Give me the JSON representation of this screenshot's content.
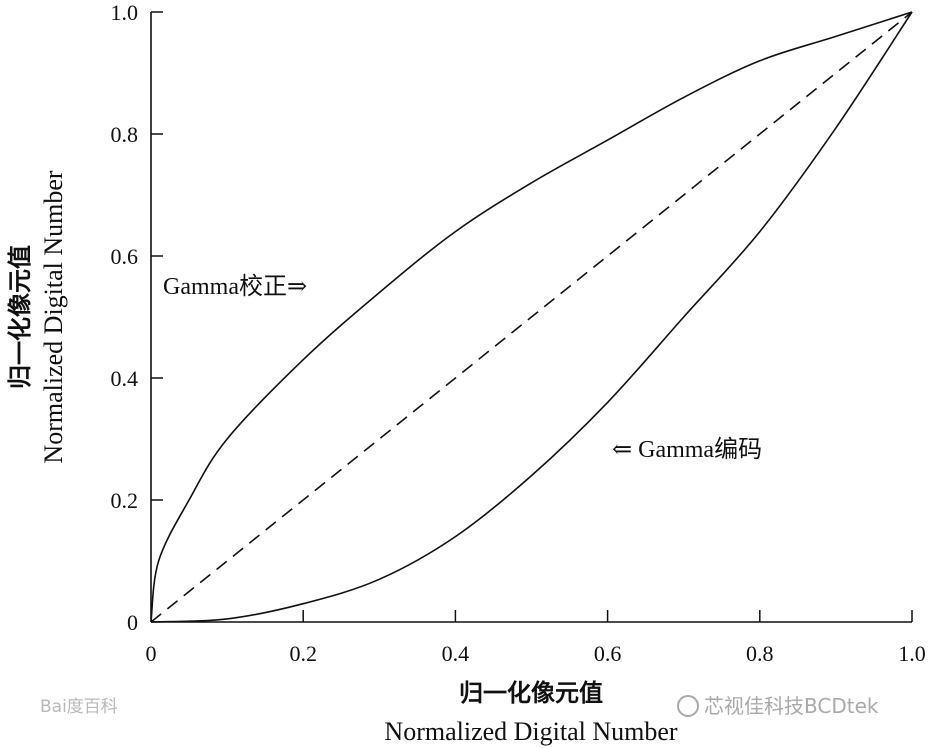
{
  "chart_data": {
    "type": "line",
    "x_axis": {
      "label_cn": "归一化像元值",
      "label_en": "Normalized Digital Number",
      "range": [
        0,
        1
      ],
      "ticks": [
        0,
        0.2,
        0.4,
        0.6,
        0.8,
        1.0
      ],
      "tick_labels": [
        "0",
        "0.2",
        "0.4",
        "0.6",
        "0.8",
        "1.0"
      ]
    },
    "y_axis": {
      "label_cn": "归一化像元值",
      "label_en": "Normalized Digital Number",
      "range": [
        0,
        1
      ],
      "ticks": [
        0,
        0.2,
        0.4,
        0.6,
        0.8,
        1.0
      ],
      "tick_labels": [
        "0",
        "0.2",
        "0.4",
        "0.6",
        "0.8",
        "1.0"
      ]
    },
    "series": [
      {
        "label": "Gamma校正",
        "style": "solid",
        "points": [
          [
            0,
            0
          ],
          [
            0.01,
            0.1
          ],
          [
            0.05,
            0.2
          ],
          [
            0.1,
            0.3
          ],
          [
            0.2,
            0.43
          ],
          [
            0.3,
            0.54
          ],
          [
            0.4,
            0.64
          ],
          [
            0.5,
            0.72
          ],
          [
            0.6,
            0.79
          ],
          [
            0.7,
            0.86
          ],
          [
            0.8,
            0.92
          ],
          [
            0.9,
            0.96
          ],
          [
            1.0,
            1.0
          ]
        ]
      },
      {
        "label": "Gamma编码",
        "style": "solid",
        "points": [
          [
            0,
            0
          ],
          [
            0.1,
            0.005
          ],
          [
            0.2,
            0.03
          ],
          [
            0.3,
            0.07
          ],
          [
            0.4,
            0.14
          ],
          [
            0.5,
            0.24
          ],
          [
            0.6,
            0.36
          ],
          [
            0.7,
            0.5
          ],
          [
            0.8,
            0.64
          ],
          [
            0.9,
            0.81
          ],
          [
            1.0,
            1.0
          ]
        ]
      },
      {
        "style": "dashed",
        "points": [
          [
            0,
            0
          ],
          [
            1,
            1
          ]
        ]
      }
    ],
    "annotations": {
      "correction": "Gamma校正⇒",
      "encoding": "⇐ Gamma编码"
    }
  },
  "watermarks": {
    "left": "Bai度百科",
    "right": "芯视佳科技BCDtek"
  }
}
